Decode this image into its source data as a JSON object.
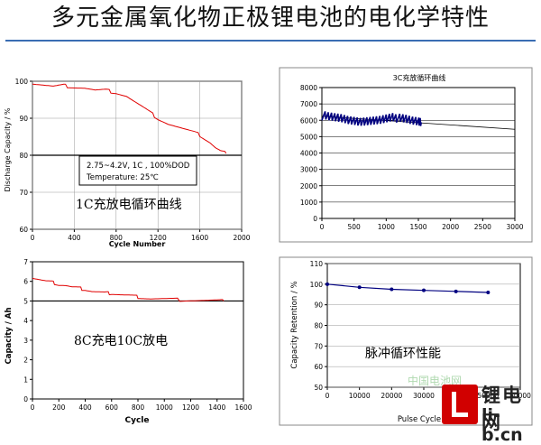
{
  "page": {
    "title": "多元金属氧化物正极锂电池的电化学特性",
    "watermark_line1": "锂电网",
    "watermark_line2": "li-b.cn",
    "faint_logo": "中国电池网"
  },
  "chart_data": [
    {
      "id": "c1",
      "type": "line",
      "ylabel": "Discharge Capacity / %",
      "xlabel": "Cycle Number",
      "xlim": [
        0,
        2000
      ],
      "ylim": [
        60,
        100
      ],
      "xticks": [
        "0",
        "400",
        "800",
        "1200",
        "1600",
        "2000"
      ],
      "yticks": [
        "60",
        "70",
        "80",
        "90",
        "100"
      ],
      "grid": true,
      "series_color": "#e00000",
      "x": [
        0,
        100,
        200,
        300,
        400,
        500,
        600,
        700,
        800,
        900,
        1000,
        1100,
        1200,
        1300,
        1400,
        1500,
        1600,
        1700,
        1750,
        1800,
        1850
      ],
      "y": [
        99.5,
        99,
        98.5,
        98.8,
        98.5,
        98.2,
        97.5,
        97.5,
        97,
        96,
        94,
        92,
        90,
        88.5,
        87.5,
        86.5,
        85.5,
        83.5,
        82,
        81,
        80.5
      ],
      "reference_line": 80,
      "note_box": [
        "2.75~4.2V, 1C , 100%DOD",
        "Temperature: 25℃"
      ],
      "caption": "1C充放电循环曲线"
    },
    {
      "id": "c2",
      "type": "scatter",
      "title": "3C充放循环曲线",
      "xlim": [
        0,
        3000
      ],
      "ylim": [
        0,
        8000
      ],
      "xticks": [
        "0",
        "500",
        "1000",
        "1500",
        "2000",
        "2500",
        "3000"
      ],
      "yticks": [
        "0",
        "1000",
        "2000",
        "3000",
        "4000",
        "5000",
        "6000",
        "7000",
        "8000"
      ],
      "grid": true,
      "series_color": "#000080",
      "x": [
        0,
        100,
        200,
        300,
        400,
        500,
        600,
        700,
        800,
        900,
        1000,
        1100,
        1200,
        1300,
        1400,
        1500,
        1550
      ],
      "y": [
        6300,
        6200,
        6150,
        6100,
        6000,
        5950,
        5900,
        5950,
        6000,
        6050,
        6150,
        6250,
        6100,
        6050,
        5950,
        5900,
        5850
      ],
      "trend_x": [
        0,
        3000
      ],
      "trend_y": [
        6250,
        5450
      ]
    },
    {
      "id": "c3",
      "type": "line",
      "ylabel": "Capacity / Ah",
      "xlabel": "Cycle",
      "xlim": [
        0,
        1600
      ],
      "ylim": [
        0,
        7
      ],
      "xticks": [
        "0",
        "200",
        "400",
        "600",
        "800",
        "1000",
        "1200",
        "1400",
        "1600"
      ],
      "yticks": [
        "0",
        "1",
        "2",
        "3",
        "4",
        "5",
        "6",
        "7"
      ],
      "grid": false,
      "series_color": "#e00000",
      "x": [
        0,
        50,
        100,
        150,
        200,
        250,
        300,
        350,
        400,
        450,
        500,
        550,
        600,
        650,
        700,
        750,
        800,
        850,
        900,
        1000,
        1100,
        1200,
        1300,
        1400,
        1450
      ],
      "y": [
        6.2,
        6.1,
        6.0,
        5.95,
        5.85,
        5.8,
        5.7,
        5.65,
        5.6,
        5.5,
        5.45,
        5.4,
        5.4,
        5.35,
        5.3,
        5.25,
        5.2,
        5.15,
        5.1,
        5.08,
        5.06,
        5.05,
        5.03,
        5.02,
        5.0
      ],
      "reference_line": 5,
      "caption": "8C充电10C放电"
    },
    {
      "id": "c4",
      "type": "line",
      "ylabel": "Capacity Retention / %",
      "xlabel": "Pulse Cycle",
      "xlim": [
        0,
        60000
      ],
      "ylim": [
        50,
        110
      ],
      "xticks": [
        "0",
        "10000",
        "20000",
        "30000",
        "40000",
        "50000",
        "60000"
      ],
      "yticks": [
        "50",
        "60",
        "70",
        "80",
        "90",
        "100",
        "110"
      ],
      "grid": true,
      "series_color": "#000080",
      "x": [
        0,
        10000,
        20000,
        30000,
        40000,
        50000
      ],
      "y": [
        100,
        98.5,
        97.5,
        97,
        96.5,
        96
      ],
      "caption": "脉冲循环性能"
    }
  ]
}
